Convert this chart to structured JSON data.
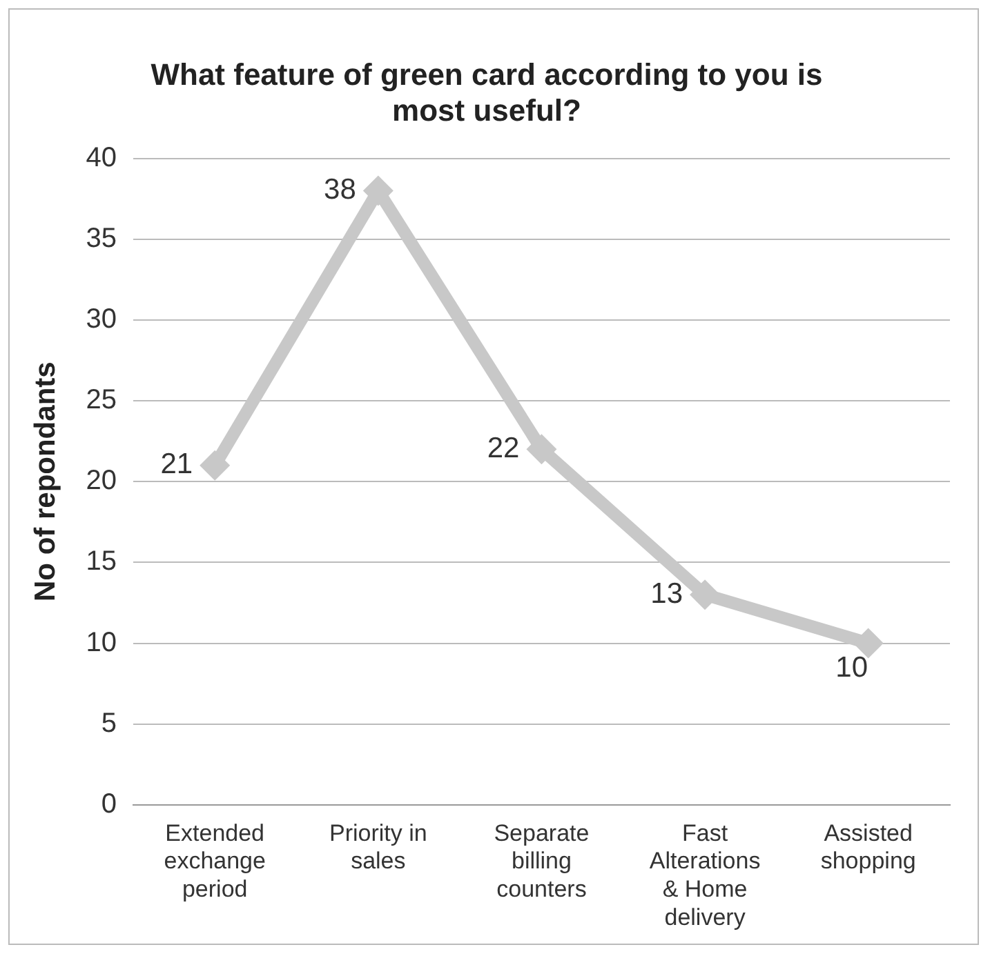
{
  "chart_data": {
    "type": "line",
    "title": "What feature of green card according to you is most useful?",
    "ylabel": "No of repondants",
    "categories": [
      "Extended exchange period",
      "Priority in sales",
      "Separate billing counters",
      "Fast Alterations & Home delivery",
      "Assisted shopping"
    ],
    "series": [
      {
        "color": "#c8c8c8",
        "values": [
          21,
          38,
          22,
          13,
          10
        ]
      }
    ],
    "ylim": [
      0,
      40
    ],
    "yticks": [
      0,
      5,
      10,
      15,
      20,
      25,
      30,
      35,
      40
    ],
    "grid": "y",
    "legend": false,
    "marker": "diamond",
    "line_style": "solid",
    "data_labels": true
  }
}
